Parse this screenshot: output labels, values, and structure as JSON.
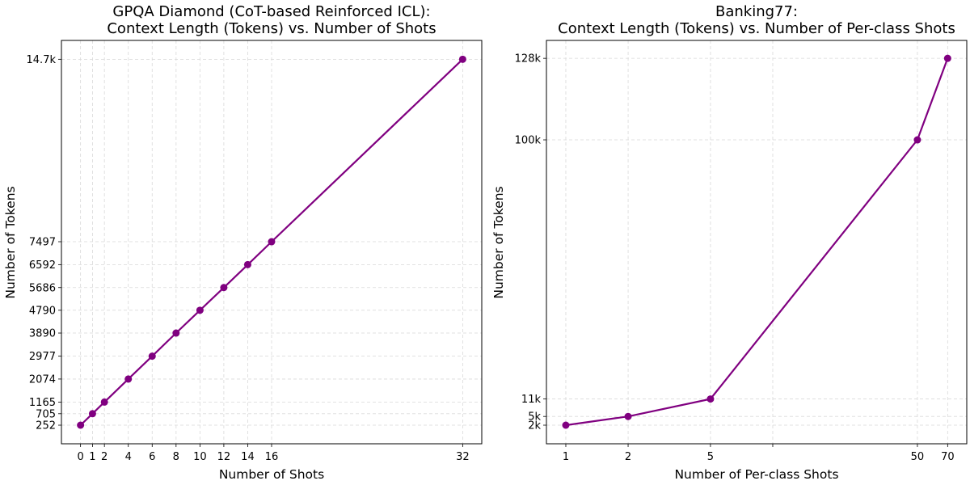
{
  "chart_data": [
    {
      "type": "line",
      "title_line1": "GPQA Diamond (CoT-based Reinforced ICL):",
      "title_line2": "Context Length (Tokens) vs. Number of Shots",
      "xlabel": "Number of Shots",
      "ylabel": "Number of Tokens",
      "xscale": "linear",
      "xlim": [
        -1.6,
        33.6
      ],
      "ylim": [
        -482,
        15445
      ],
      "grid": true,
      "x": [
        0,
        1,
        2,
        4,
        6,
        8,
        10,
        12,
        14,
        16,
        32
      ],
      "y": [
        252,
        705,
        1165,
        2074,
        2977,
        3890,
        4790,
        5686,
        6592,
        7497,
        14700
      ],
      "xticks": [
        0,
        1,
        2,
        4,
        6,
        8,
        10,
        12,
        14,
        16,
        32
      ],
      "xtick_labels": [
        "0",
        "1",
        "2",
        "4",
        "6",
        "8",
        "10",
        "12",
        "14",
        "16",
        "32"
      ],
      "yticks": [
        252,
        705,
        1165,
        2074,
        2977,
        3890,
        4790,
        5686,
        6592,
        7497,
        14700
      ],
      "ytick_labels": [
        "252",
        "705",
        "1165",
        "2074",
        "2977",
        "3890",
        "4790",
        "5686",
        "6592",
        "7497",
        "14.7k"
      ],
      "color": "#800080",
      "marker": "circle"
    },
    {
      "type": "line",
      "title_line1": "Banking77:",
      "title_line2": "Context Length (Tokens) vs. Number of Per-class Shots",
      "xlabel": "Number of Per-class Shots",
      "ylabel": "Number of Tokens",
      "xscale": "log",
      "xlim": [
        0.806,
        86.6
      ],
      "ylim": [
        -4385,
        134150
      ],
      "grid": true,
      "x": [
        1,
        2,
        5,
        50,
        70
      ],
      "y": [
        2000,
        5000,
        11000,
        100000,
        128000
      ],
      "xticks": [
        1,
        2,
        5,
        10,
        50,
        70
      ],
      "xtick_labels": [
        "1",
        "2",
        "5",
        "",
        "50",
        "70"
      ],
      "yticks": [
        2000,
        5000,
        11000,
        100000,
        128000
      ],
      "ytick_labels": [
        "2k",
        "5k",
        "11k",
        "100k",
        "128k"
      ],
      "color": "#800080",
      "marker": "circle"
    }
  ]
}
